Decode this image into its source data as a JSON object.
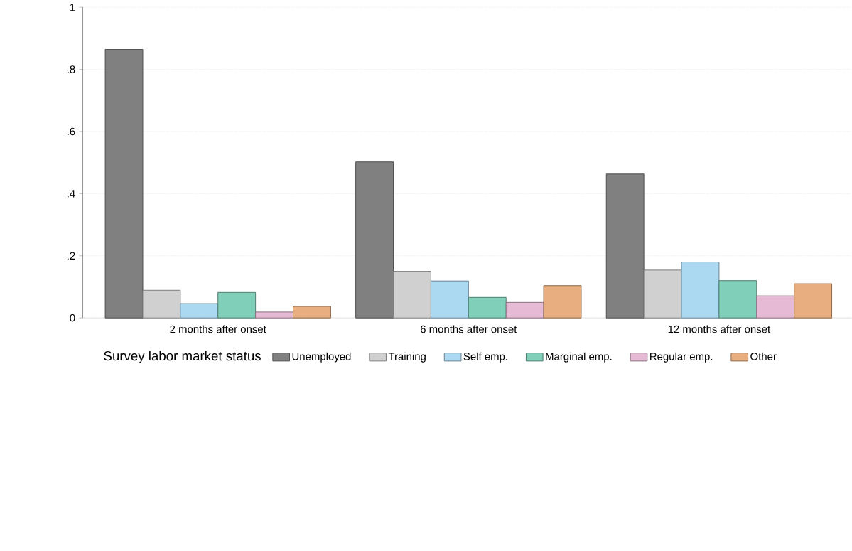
{
  "chart_data": {
    "type": "bar",
    "legend_title": "Survey labor market status",
    "categories": [
      "2 months after onset",
      "6 months after onset",
      "12 months after onset"
    ],
    "series": [
      {
        "name": "Unemployed",
        "color": "#808080",
        "values": [
          0.864,
          0.502,
          0.463
        ]
      },
      {
        "name": "Training",
        "color": "#d0d0d0",
        "values": [
          0.089,
          0.15,
          0.154
        ]
      },
      {
        "name": "Self emp.",
        "color": "#acd9f2",
        "values": [
          0.046,
          0.119,
          0.18
        ]
      },
      {
        "name": "Marginal emp.",
        "color": "#80cfb9",
        "values": [
          0.082,
          0.066,
          0.12
        ]
      },
      {
        "name": "Regular emp.",
        "color": "#e6b9d4",
        "values": [
          0.019,
          0.05,
          0.071
        ]
      },
      {
        "name": "Other",
        "color": "#e9ae7f",
        "values": [
          0.037,
          0.104,
          0.11
        ]
      }
    ],
    "ylim": [
      0,
      1
    ],
    "yticks": [
      0,
      {
        "value": 0.2,
        "label": ".2"
      },
      {
        "value": 0.4,
        "label": ".4"
      },
      {
        "value": 0.6,
        "label": ".6"
      },
      {
        "value": 0.8,
        "label": ".8"
      },
      1
    ],
    "grid": "y",
    "legend": "bottom"
  }
}
